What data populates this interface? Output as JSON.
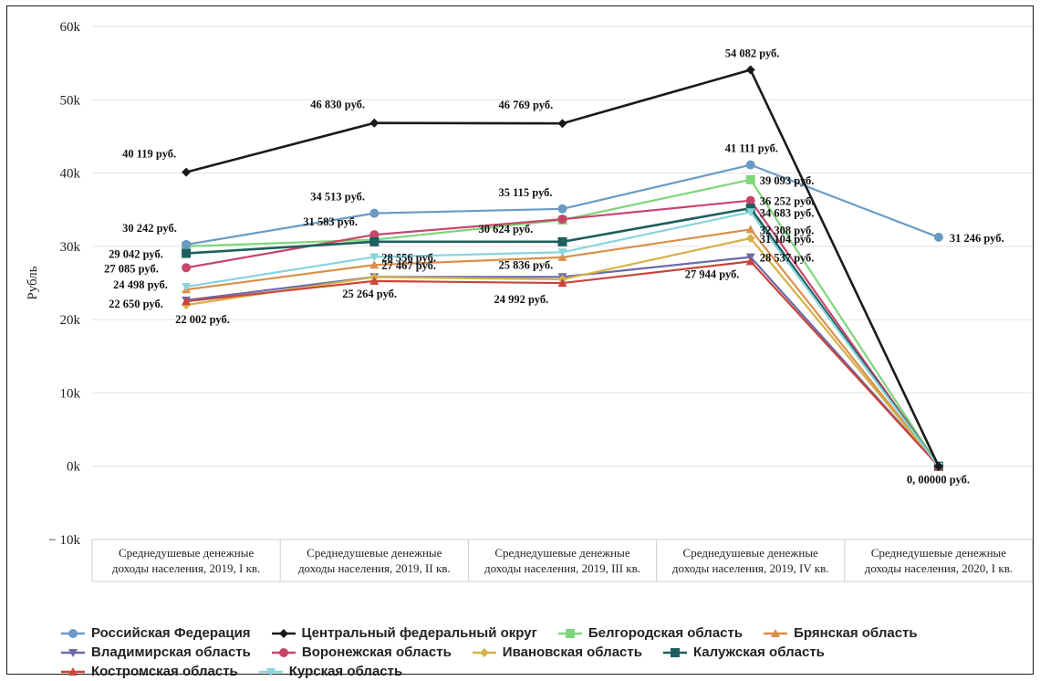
{
  "chart_data": {
    "type": "line",
    "title": "",
    "xlabel": "",
    "ylabel": "Рубль",
    "ylim": [
      -10000,
      60000
    ],
    "y_ticks": [
      -10000,
      0,
      10000,
      20000,
      30000,
      40000,
      50000,
      60000
    ],
    "y_tick_labels": [
      "− 10k",
      "0k",
      "10k",
      "20k",
      "30k",
      "40k",
      "50k",
      "60k"
    ],
    "grid": "horizontal",
    "legend_position": "bottom",
    "categories": [
      "Среднедушевые денежные доходы населения, 2019, I кв.",
      "Среднедушевые денежные доходы населения, 2019, II кв.",
      "Среднедушевые денежные доходы населения, 2019, III кв.",
      "Среднедушевые денежные доходы населения, 2019, IV кв.",
      "Среднедушевые денежные доходы населения, 2020, I кв."
    ],
    "category_lines": [
      [
        "Среднедушевые денежные",
        "доходы населения, 2019, I кв."
      ],
      [
        "Среднедушевые денежные",
        "доходы населения, 2019, II кв."
      ],
      [
        "Среднедушевые денежные",
        "доходы населения, 2019, III кв."
      ],
      [
        "Среднедушевые денежные",
        "доходы населения, 2019, IV кв."
      ],
      [
        "Среднедушевые денежные",
        "доходы населения, 2020, I кв."
      ]
    ],
    "series": [
      {
        "name": "Российская Федерация",
        "color": "#6a9ac4",
        "marker": "circle",
        "values": [
          30242,
          34513,
          35115,
          41111,
          31246
        ]
      },
      {
        "name": "Центральный федеральный округ",
        "color": "#1a1a1a",
        "marker": "diamond",
        "values": [
          40119,
          46830,
          46769,
          54082,
          0
        ]
      },
      {
        "name": "Белгородская область",
        "color": "#7ed67a",
        "marker": "square",
        "values": [
          30000,
          30900,
          33600,
          39093,
          0
        ]
      },
      {
        "name": "Брянская область",
        "color": "#d9904a",
        "marker": "triangle-up",
        "values": [
          24100,
          27467,
          28500,
          32308,
          0
        ]
      },
      {
        "name": "Владимирская область",
        "color": "#6a6aa8",
        "marker": "triangle-down",
        "values": [
          22650,
          25836,
          25836,
          28537,
          0
        ]
      },
      {
        "name": "Воронежская область",
        "color": "#c8456a",
        "marker": "circle",
        "values": [
          27085,
          31583,
          33700,
          36252,
          0
        ]
      },
      {
        "name": "Ивановская область",
        "color": "#d4b24a",
        "marker": "diamond",
        "values": [
          22002,
          25800,
          25500,
          31104,
          0
        ]
      },
      {
        "name": "Калужская область",
        "color": "#1f5e5e",
        "marker": "square",
        "values": [
          29042,
          30624,
          30624,
          35200,
          0
        ]
      },
      {
        "name": "Костромская область",
        "color": "#c8453a",
        "marker": "triangle-up",
        "values": [
          22500,
          25264,
          24992,
          27944,
          0
        ]
      },
      {
        "name": "Курская область",
        "color": "#8ad4dc",
        "marker": "triangle-down",
        "values": [
          24498,
          28556,
          29200,
          34683,
          0
        ]
      }
    ],
    "data_labels": [
      {
        "text": "40 119 руб.",
        "c": 0,
        "v": 40119,
        "dx": -70,
        "dy": -16
      },
      {
        "text": "46 830 руб.",
        "c": 1,
        "v": 46830,
        "dx": -70,
        "dy": -16
      },
      {
        "text": "46 769 руб.",
        "c": 2,
        "v": 46769,
        "dx": -70,
        "dy": -16
      },
      {
        "text": "54 082 руб.",
        "c": 3,
        "v": 54082,
        "dx": -28,
        "dy": -14
      },
      {
        "text": "0, 00000 руб.",
        "c": 4,
        "v": 0,
        "dx": -35,
        "dy": 19
      },
      {
        "text": "41 111 руб.",
        "c": 3,
        "v": 41111,
        "dx": -28,
        "dy": -14
      },
      {
        "text": "31 246 руб.",
        "c": 4,
        "v": 31246,
        "dx": 12,
        "dy": 5
      },
      {
        "text": "34 513 руб.",
        "c": 1,
        "v": 34513,
        "dx": -70,
        "dy": -14
      },
      {
        "text": "35 115 руб.",
        "c": 2,
        "v": 35115,
        "dx": -70,
        "dy": -14
      },
      {
        "text": "30 242 руб.",
        "c": 0,
        "v": 30242,
        "dx": -70,
        "dy": -14
      },
      {
        "text": "39 093 руб.",
        "c": 3,
        "v": 39093,
        "dx": 10,
        "dy": 5
      },
      {
        "text": "36 252 руб.",
        "c": 3,
        "v": 36252,
        "dx": 10,
        "dy": 5
      },
      {
        "text": "34 683 руб.",
        "c": 3,
        "v": 34683,
        "dx": 10,
        "dy": 5
      },
      {
        "text": "32 308 руб.",
        "c": 3,
        "v": 32308,
        "dx": 10,
        "dy": 5
      },
      {
        "text": "31 104 руб.",
        "c": 3,
        "v": 31104,
        "dx": 10,
        "dy": 5
      },
      {
        "text": "28 537 руб.",
        "c": 3,
        "v": 28537,
        "dx": 10,
        "dy": 5
      },
      {
        "text": "27 944 руб.",
        "c": 3,
        "v": 27944,
        "dx": -72,
        "dy": 18
      },
      {
        "text": "31 583 руб.",
        "c": 1,
        "v": 31583,
        "dx": -78,
        "dy": -10
      },
      {
        "text": "30 624 руб.",
        "c": 2,
        "v": 30624,
        "dx": -92,
        "dy": -10
      },
      {
        "text": "29 042 руб.",
        "c": 0,
        "v": 29042,
        "dx": -85,
        "dy": 5
      },
      {
        "text": "27 085 руб.",
        "c": 0,
        "v": 27085,
        "dx": -90,
        "dy": 5
      },
      {
        "text": "28 556 руб.",
        "c": 1,
        "v": 28556,
        "dx": 8,
        "dy": 5
      },
      {
        "text": "27 467 руб.",
        "c": 1,
        "v": 27467,
        "dx": 8,
        "dy": 5
      },
      {
        "text": "25 836 руб.",
        "c": 2,
        "v": 25836,
        "dx": -70,
        "dy": -9
      },
      {
        "text": "24 498 руб.",
        "c": 0,
        "v": 24498,
        "dx": -80,
        "dy": 2
      },
      {
        "text": "22 650 руб.",
        "c": 0,
        "v": 22650,
        "dx": -85,
        "dy": 8
      },
      {
        "text": "22 002 руб.",
        "c": 0,
        "v": 22002,
        "dx": -12,
        "dy": 20
      },
      {
        "text": "25 264 руб.",
        "c": 1,
        "v": 25264,
        "dx": -35,
        "dy": 18
      },
      {
        "text": "24 992 руб.",
        "c": 2,
        "v": 24992,
        "dx": -75,
        "dy": 22
      }
    ]
  }
}
